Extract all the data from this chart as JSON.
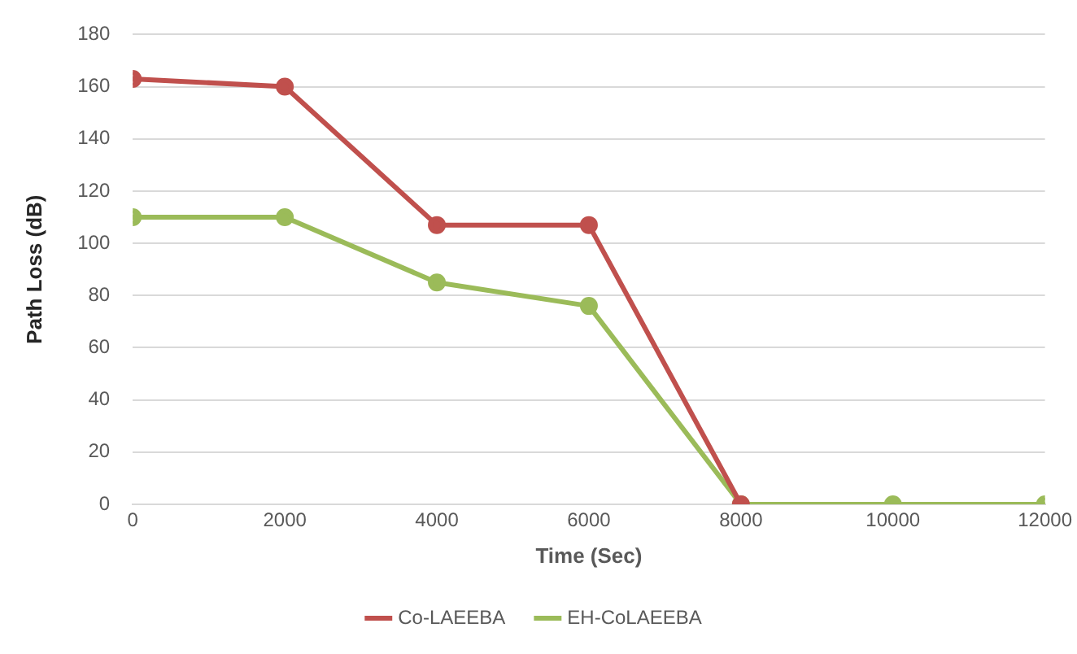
{
  "chart_data": {
    "type": "line",
    "xlabel": "Time (Sec)",
    "ylabel": "Path Loss (dB)",
    "x": [
      0,
      2000,
      4000,
      6000,
      8000,
      10000,
      12000
    ],
    "series": [
      {
        "name": "Co-LAEEBA",
        "color": "#c0504d",
        "values": [
          163,
          160,
          107,
          107,
          0,
          null,
          null
        ]
      },
      {
        "name": "EH-CoLAEEBA",
        "color": "#9bbb59",
        "values": [
          110,
          110,
          85,
          76,
          0,
          0,
          0
        ]
      }
    ],
    "xlim": [
      0,
      12000
    ],
    "xticks": [
      0,
      2000,
      4000,
      6000,
      8000,
      10000,
      12000
    ],
    "ylim": [
      0,
      180
    ],
    "yticks": [
      0,
      20,
      40,
      60,
      80,
      100,
      120,
      140,
      160,
      180
    ],
    "grid": "y",
    "legend": "bottom",
    "marker": "circle",
    "line_style": "solid"
  }
}
